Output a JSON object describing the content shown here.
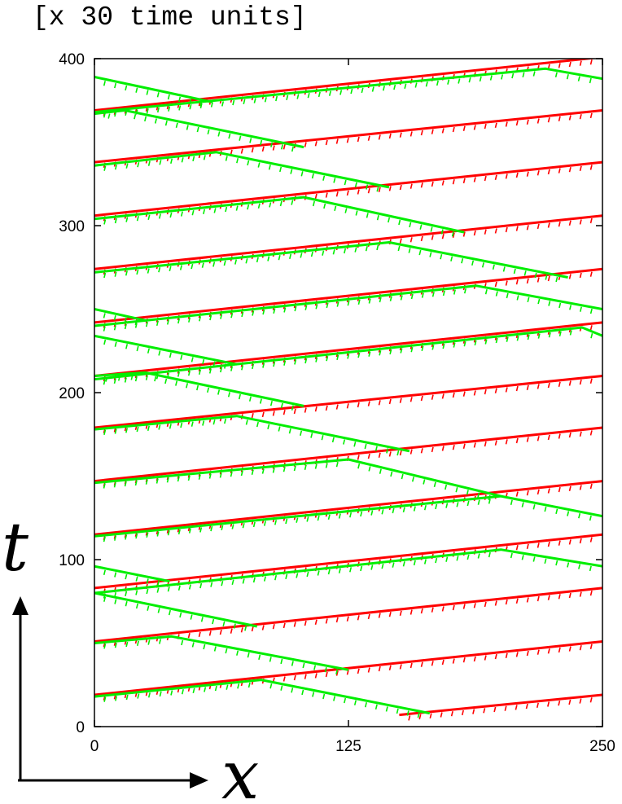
{
  "chart_data": {
    "type": "line",
    "title": "[x 30 time units]",
    "xlabel": "x",
    "ylabel": "t",
    "xlim": [
      0,
      250
    ],
    "ylim": [
      0,
      400
    ],
    "x_ticks": [
      0,
      125,
      250
    ],
    "y_ticks": [
      0,
      100,
      200,
      300,
      400
    ],
    "x_tick_labels": [
      "0",
      "125",
      "250"
    ],
    "y_tick_labels": [
      "0",
      "100",
      "200",
      "300",
      "400"
    ],
    "grid": false,
    "legend": "none",
    "colors": {
      "red": "#ff0000",
      "green": "#00ee00",
      "axis": "#000000"
    },
    "series": [
      {
        "color": "red",
        "x": [
          150,
          250
        ],
        "y": [
          7,
          19
        ]
      },
      {
        "color": "red",
        "x": [
          0,
          250
        ],
        "y": [
          19,
          51
        ]
      },
      {
        "color": "red",
        "x": [
          0,
          250
        ],
        "y": [
          51,
          83
        ]
      },
      {
        "color": "red",
        "x": [
          0,
          250
        ],
        "y": [
          83,
          115
        ]
      },
      {
        "color": "red",
        "x": [
          0,
          250
        ],
        "y": [
          115,
          147
        ]
      },
      {
        "color": "red",
        "x": [
          0,
          250
        ],
        "y": [
          147,
          179
        ]
      },
      {
        "color": "red",
        "x": [
          0,
          250
        ],
        "y": [
          179,
          210
        ]
      },
      {
        "color": "red",
        "x": [
          0,
          250
        ],
        "y": [
          210,
          242
        ]
      },
      {
        "color": "red",
        "x": [
          0,
          250
        ],
        "y": [
          242,
          274
        ]
      },
      {
        "color": "red",
        "x": [
          0,
          250
        ],
        "y": [
          274,
          306
        ]
      },
      {
        "color": "red",
        "x": [
          0,
          250
        ],
        "y": [
          306,
          338
        ]
      },
      {
        "color": "red",
        "x": [
          0,
          250
        ],
        "y": [
          338,
          369
        ]
      },
      {
        "color": "red",
        "x": [
          0,
          250
        ],
        "y": [
          369,
          401
        ]
      },
      {
        "color": "green",
        "x": [
          0,
          82,
          165
        ],
        "y": [
          18,
          28,
          8
        ]
      },
      {
        "color": "green",
        "x": [
          0,
          38,
          125
        ],
        "y": [
          50,
          54,
          34
        ]
      },
      {
        "color": "green",
        "x": [
          0,
          80
        ],
        "y": [
          80,
          60
        ]
      },
      {
        "color": "green",
        "x": [
          0,
          37
        ],
        "y": [
          96,
          87
        ]
      },
      {
        "color": "green",
        "x": [
          0,
          200,
          250
        ],
        "y": [
          114,
          138,
          126
        ]
      },
      {
        "color": "green",
        "x": [
          0,
          125,
          200
        ],
        "y": [
          146,
          160,
          138
        ]
      },
      {
        "color": "green",
        "x": [
          0,
          70,
          155
        ],
        "y": [
          178,
          186,
          165
        ]
      },
      {
        "color": "green",
        "x": [
          0,
          25,
          103
        ],
        "y": [
          210,
          212,
          192
        ]
      },
      {
        "color": "green",
        "x": [
          0,
          70
        ],
        "y": [
          234,
          217
        ]
      },
      {
        "color": "green",
        "x": [
          0,
          26
        ],
        "y": [
          250,
          243
        ]
      },
      {
        "color": "green",
        "x": [
          0,
          145,
          233
        ],
        "y": [
          272,
          290,
          269
        ]
      },
      {
        "color": "green",
        "x": [
          0,
          103,
          182
        ],
        "y": [
          304,
          317,
          296
        ]
      },
      {
        "color": "green",
        "x": [
          0,
          60,
          145
        ],
        "y": [
          336,
          344,
          323
        ]
      },
      {
        "color": "green",
        "x": [
          0,
          15,
          103
        ],
        "y": [
          367,
          369,
          347
        ]
      },
      {
        "color": "green",
        "x": [
          0,
          58
        ],
        "y": [
          389,
          374
        ]
      },
      {
        "color": "green",
        "x": [
          0,
          200,
          250
        ],
        "y": [
          80,
          106,
          96
        ]
      },
      {
        "color": "green",
        "x": [
          0,
          240,
          250
        ],
        "y": [
          208,
          239,
          234
        ]
      },
      {
        "color": "green",
        "x": [
          0,
          188,
          250
        ],
        "y": [
          240,
          264,
          250
        ]
      },
      {
        "color": "green",
        "x": [
          0,
          222,
          250
        ],
        "y": [
          368,
          394,
          388
        ]
      }
    ]
  }
}
